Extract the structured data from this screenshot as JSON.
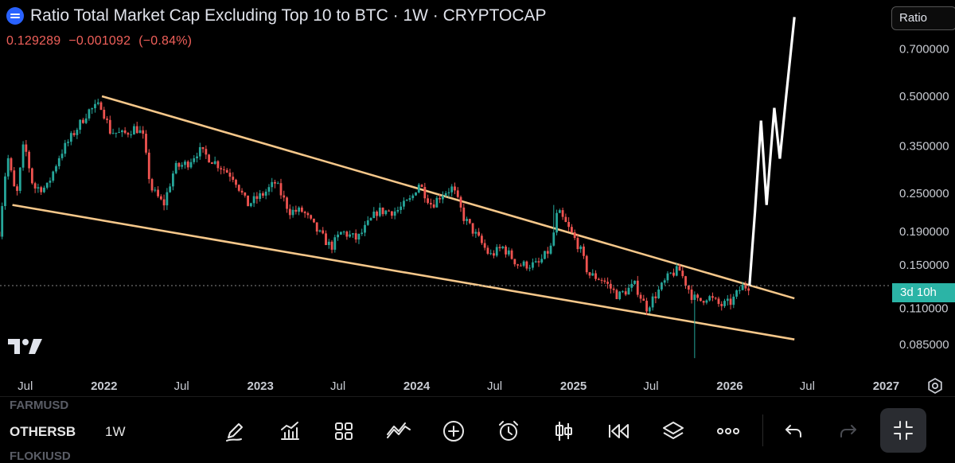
{
  "header": {
    "title": "Ratio Total Market Cap Excluding Top 10 to BTC · 1W · CRYPTOCAP",
    "price": "0.129289",
    "change": "−0.001092",
    "change_pct": "(−0.84%)"
  },
  "scale_button": "Ratio",
  "countdown": "3d 10h",
  "colors": {
    "up": "#26a69a",
    "down": "#ef5350",
    "trendline": "#f5c78a",
    "projection": "#ffffff",
    "countdown_bg": "#2bb4a6",
    "background": "#000000"
  },
  "toolbar": {
    "symbol": "OTHERSB",
    "interval": "1W",
    "ghost_top": "FARMUSD",
    "ghost_bottom": "FLOKIUSD",
    "icons": [
      "drawing-pen-icon",
      "indicators-icon",
      "layout-grid-icon",
      "trend-tool-icon",
      "add-icon",
      "alert-clock-icon",
      "candle-type-icon",
      "replay-icon",
      "layers-icon",
      "more-icon",
      "undo-icon",
      "redo-icon",
      "fullscreen-icon"
    ]
  },
  "chart_data": {
    "type": "candlestick",
    "title": "Ratio Total Market Cap Excluding Top 10 to BTC · 1W · CRYPTOCAP",
    "scale": "log",
    "ylim": [
      0.072,
      0.95
    ],
    "y_ticks": [
      "0.700000",
      "0.500000",
      "0.350000",
      "0.250000",
      "0.190000",
      "0.150000",
      "0.110000",
      "0.085000"
    ],
    "x_ticks": [
      "Jul",
      "2022",
      "Jul",
      "2023",
      "Jul",
      "2024",
      "Jul",
      "2025",
      "Jul",
      "2026",
      "Jul",
      "2027"
    ],
    "x_range": [
      "2021-05-03",
      "2027-01-04"
    ],
    "last_value": 0.129289,
    "anchors": [
      [
        "2021-05-01",
        0.19
      ],
      [
        "2021-05-20",
        0.33
      ],
      [
        "2021-06-10",
        0.24
      ],
      [
        "2021-06-28",
        0.36
      ],
      [
        "2021-07-20",
        0.26
      ],
      [
        "2021-08-20",
        0.26
      ],
      [
        "2021-09-20",
        0.33
      ],
      [
        "2021-10-20",
        0.38
      ],
      [
        "2021-11-25",
        0.45
      ],
      [
        "2021-12-25",
        0.47
      ],
      [
        "2022-01-15",
        0.39
      ],
      [
        "2022-02-15",
        0.38
      ],
      [
        "2022-03-15",
        0.4
      ],
      [
        "2022-04-01",
        0.38
      ],
      [
        "2022-04-20",
        0.26
      ],
      [
        "2022-05-20",
        0.23
      ],
      [
        "2022-06-15",
        0.3
      ],
      [
        "2022-07-15",
        0.31
      ],
      [
        "2022-08-10",
        0.34
      ],
      [
        "2022-09-20",
        0.31
      ],
      [
        "2022-11-01",
        0.28
      ],
      [
        "2022-12-01",
        0.23
      ],
      [
        "2023-01-10",
        0.25
      ],
      [
        "2023-02-05",
        0.27
      ],
      [
        "2023-03-10",
        0.22
      ],
      [
        "2023-04-10",
        0.22
      ],
      [
        "2023-05-15",
        0.19
      ],
      [
        "2023-06-15",
        0.17
      ],
      [
        "2023-07-10",
        0.19
      ],
      [
        "2023-08-15",
        0.18
      ],
      [
        "2023-10-01",
        0.22
      ],
      [
        "2023-11-15",
        0.22
      ],
      [
        "2023-12-20",
        0.24
      ],
      [
        "2024-01-05",
        0.27
      ],
      [
        "2024-02-05",
        0.23
      ],
      [
        "2024-03-01",
        0.25
      ],
      [
        "2024-03-25",
        0.26
      ],
      [
        "2024-04-20",
        0.21
      ],
      [
        "2024-05-25",
        0.18
      ],
      [
        "2024-06-20",
        0.16
      ],
      [
        "2024-07-20",
        0.17
      ],
      [
        "2024-08-25",
        0.15
      ],
      [
        "2024-10-10",
        0.15
      ],
      [
        "2024-11-10",
        0.17
      ],
      [
        "2024-11-25",
        0.22
      ],
      [
        "2024-12-15",
        0.2
      ],
      [
        "2025-01-15",
        0.17
      ],
      [
        "2025-02-05",
        0.14
      ],
      [
        "2025-03-10",
        0.135
      ],
      [
        "2025-04-15",
        0.12
      ],
      [
        "2025-05-25",
        0.13
      ],
      [
        "2025-06-20",
        0.11
      ],
      [
        "2025-07-10",
        0.12
      ],
      [
        "2025-08-15",
        0.14
      ],
      [
        "2025-09-05",
        0.145
      ],
      [
        "2025-10-05",
        0.12
      ],
      [
        "2025-10-20",
        0.115
      ],
      [
        "2025-11-10",
        0.12
      ],
      [
        "2025-12-10",
        0.112
      ],
      [
        "2026-01-05",
        0.115
      ],
      [
        "2026-01-28",
        0.128
      ],
      [
        "2026-02-16",
        0.129
      ]
    ],
    "wicks": [
      [
        "2025-10-10",
        0.077
      ],
      [
        "2024-11-18",
        0.23
      ]
    ],
    "trendlines": [
      {
        "from": [
          "2021-12-27",
          0.5
        ],
        "to": [
          "2026-06-01",
          0.118
        ]
      },
      {
        "from": [
          "2021-06-01",
          0.23
        ],
        "to": [
          "2026-06-01",
          0.088
        ]
      }
    ],
    "projection": [
      [
        "2026-02-16",
        0.129
      ],
      [
        "2026-03-01",
        0.22
      ],
      [
        "2026-03-15",
        0.42
      ],
      [
        "2026-03-28",
        0.23
      ],
      [
        "2026-04-15",
        0.46
      ],
      [
        "2026-04-28",
        0.32
      ],
      [
        "2026-05-12",
        0.49
      ],
      [
        "2026-06-01",
        0.88
      ]
    ]
  }
}
